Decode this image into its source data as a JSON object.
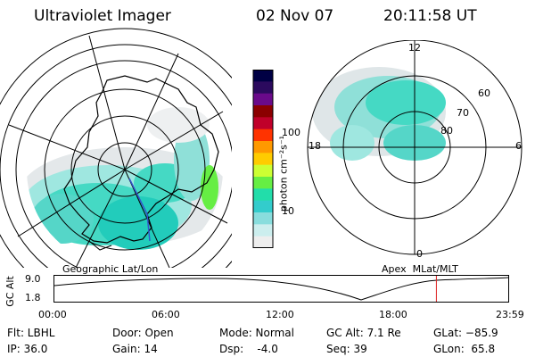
{
  "header": {
    "instrument": "Ultraviolet Imager",
    "date": "02 Nov 07",
    "time": "20:11:58 UT"
  },
  "colorbar": {
    "unit": "photon cm⁻²s⁻¹",
    "tick_labels": [
      "100",
      "10"
    ],
    "colors": [
      "#000044",
      "#2b0a5e",
      "#6a0a8a",
      "#8b0000",
      "#c0002a",
      "#ff3300",
      "#ff9900",
      "#ffcc00",
      "#ccff33",
      "#66ee44",
      "#22ddaa",
      "#33cccc",
      "#88dddd",
      "#cceeee",
      "#eeeeee"
    ]
  },
  "left_map": {
    "projection_label": "Geographic Lat/Lon"
  },
  "right_map": {
    "projection_label": "Apex  MLat/MLT",
    "mlt_labels": [
      "12",
      "18",
      "6",
      "0"
    ],
    "mlat_labels": [
      "60",
      "70",
      "80"
    ]
  },
  "alt_plot": {
    "axis_title": "GC Alt",
    "y_ticks": [
      "9.0",
      "1.8"
    ],
    "x_ticks": [
      "00:00",
      "06:00",
      "12:00",
      "18:00",
      "23:59"
    ],
    "current_time_marker_hours": 20.2
  },
  "footer": {
    "filter": "Flt: LBHL",
    "ip": "IP: 36.0",
    "door": "Door: Open",
    "gain": "Gain: 14",
    "mode": "Mode: Normal",
    "dsp": "Dsp:    -4.0",
    "gc_alt": "GC Alt: 7.1 Re",
    "seq": "Seq: 39",
    "glat": "GLat: −85.9",
    "glon": "GLon:  65.8"
  }
}
